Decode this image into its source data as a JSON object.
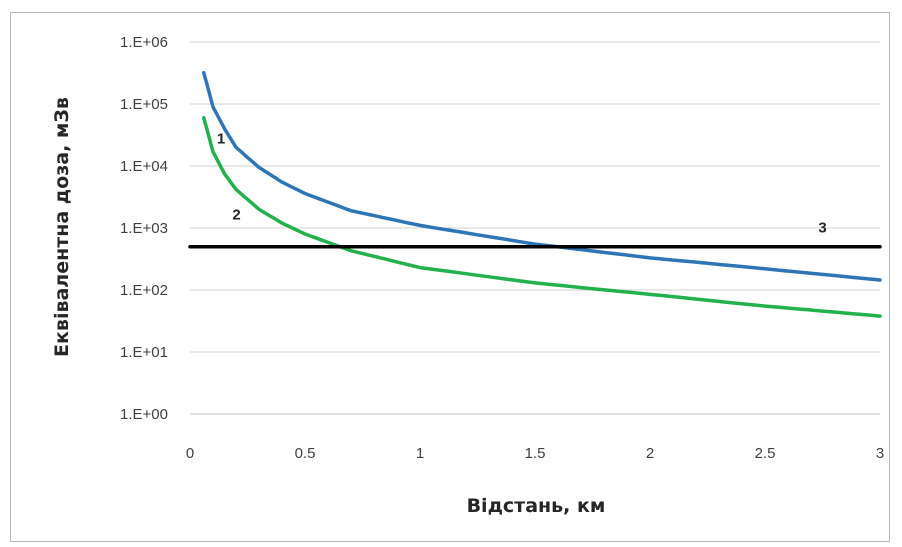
{
  "chart_data": {
    "type": "line",
    "xlabel": "Відстань, км",
    "ylabel": "Еквівалентна доза, мЗв",
    "xlim": [
      0,
      3
    ],
    "ylim_log10": [
      0,
      6
    ],
    "y_scale": "log",
    "grid": "horizontal",
    "x_ticks": [
      "0",
      "0.5",
      "1",
      "1.5",
      "2",
      "2.5",
      "3"
    ],
    "y_ticks": [
      "1.E+00",
      "1.E+01",
      "1.E+02",
      "1.E+03",
      "1.E+04",
      "1.E+05",
      "1.E+06"
    ],
    "colors": {
      "series_1": "#2e75b6",
      "series_2": "#22b14c",
      "series_3": "#000000",
      "grid": "#d0d0d0"
    },
    "series": [
      {
        "name": "1",
        "x": [
          0.06,
          0.1,
          0.15,
          0.2,
          0.3,
          0.4,
          0.5,
          0.7,
          1.0,
          1.5,
          2.0,
          2.5,
          3.0
        ],
        "y": [
          320000,
          90000,
          40000,
          20000,
          9500,
          5500,
          3600,
          1900,
          1100,
          550,
          330,
          220,
          145
        ]
      },
      {
        "name": "2",
        "x": [
          0.06,
          0.1,
          0.15,
          0.2,
          0.3,
          0.4,
          0.5,
          0.7,
          1.0,
          1.5,
          2.0,
          2.5,
          3.0
        ],
        "y": [
          60000,
          17000,
          7500,
          4200,
          2000,
          1200,
          800,
          430,
          230,
          130,
          85,
          55,
          38
        ]
      },
      {
        "name": "3",
        "x": [
          0,
          3
        ],
        "y": [
          500,
          500
        ]
      }
    ]
  }
}
